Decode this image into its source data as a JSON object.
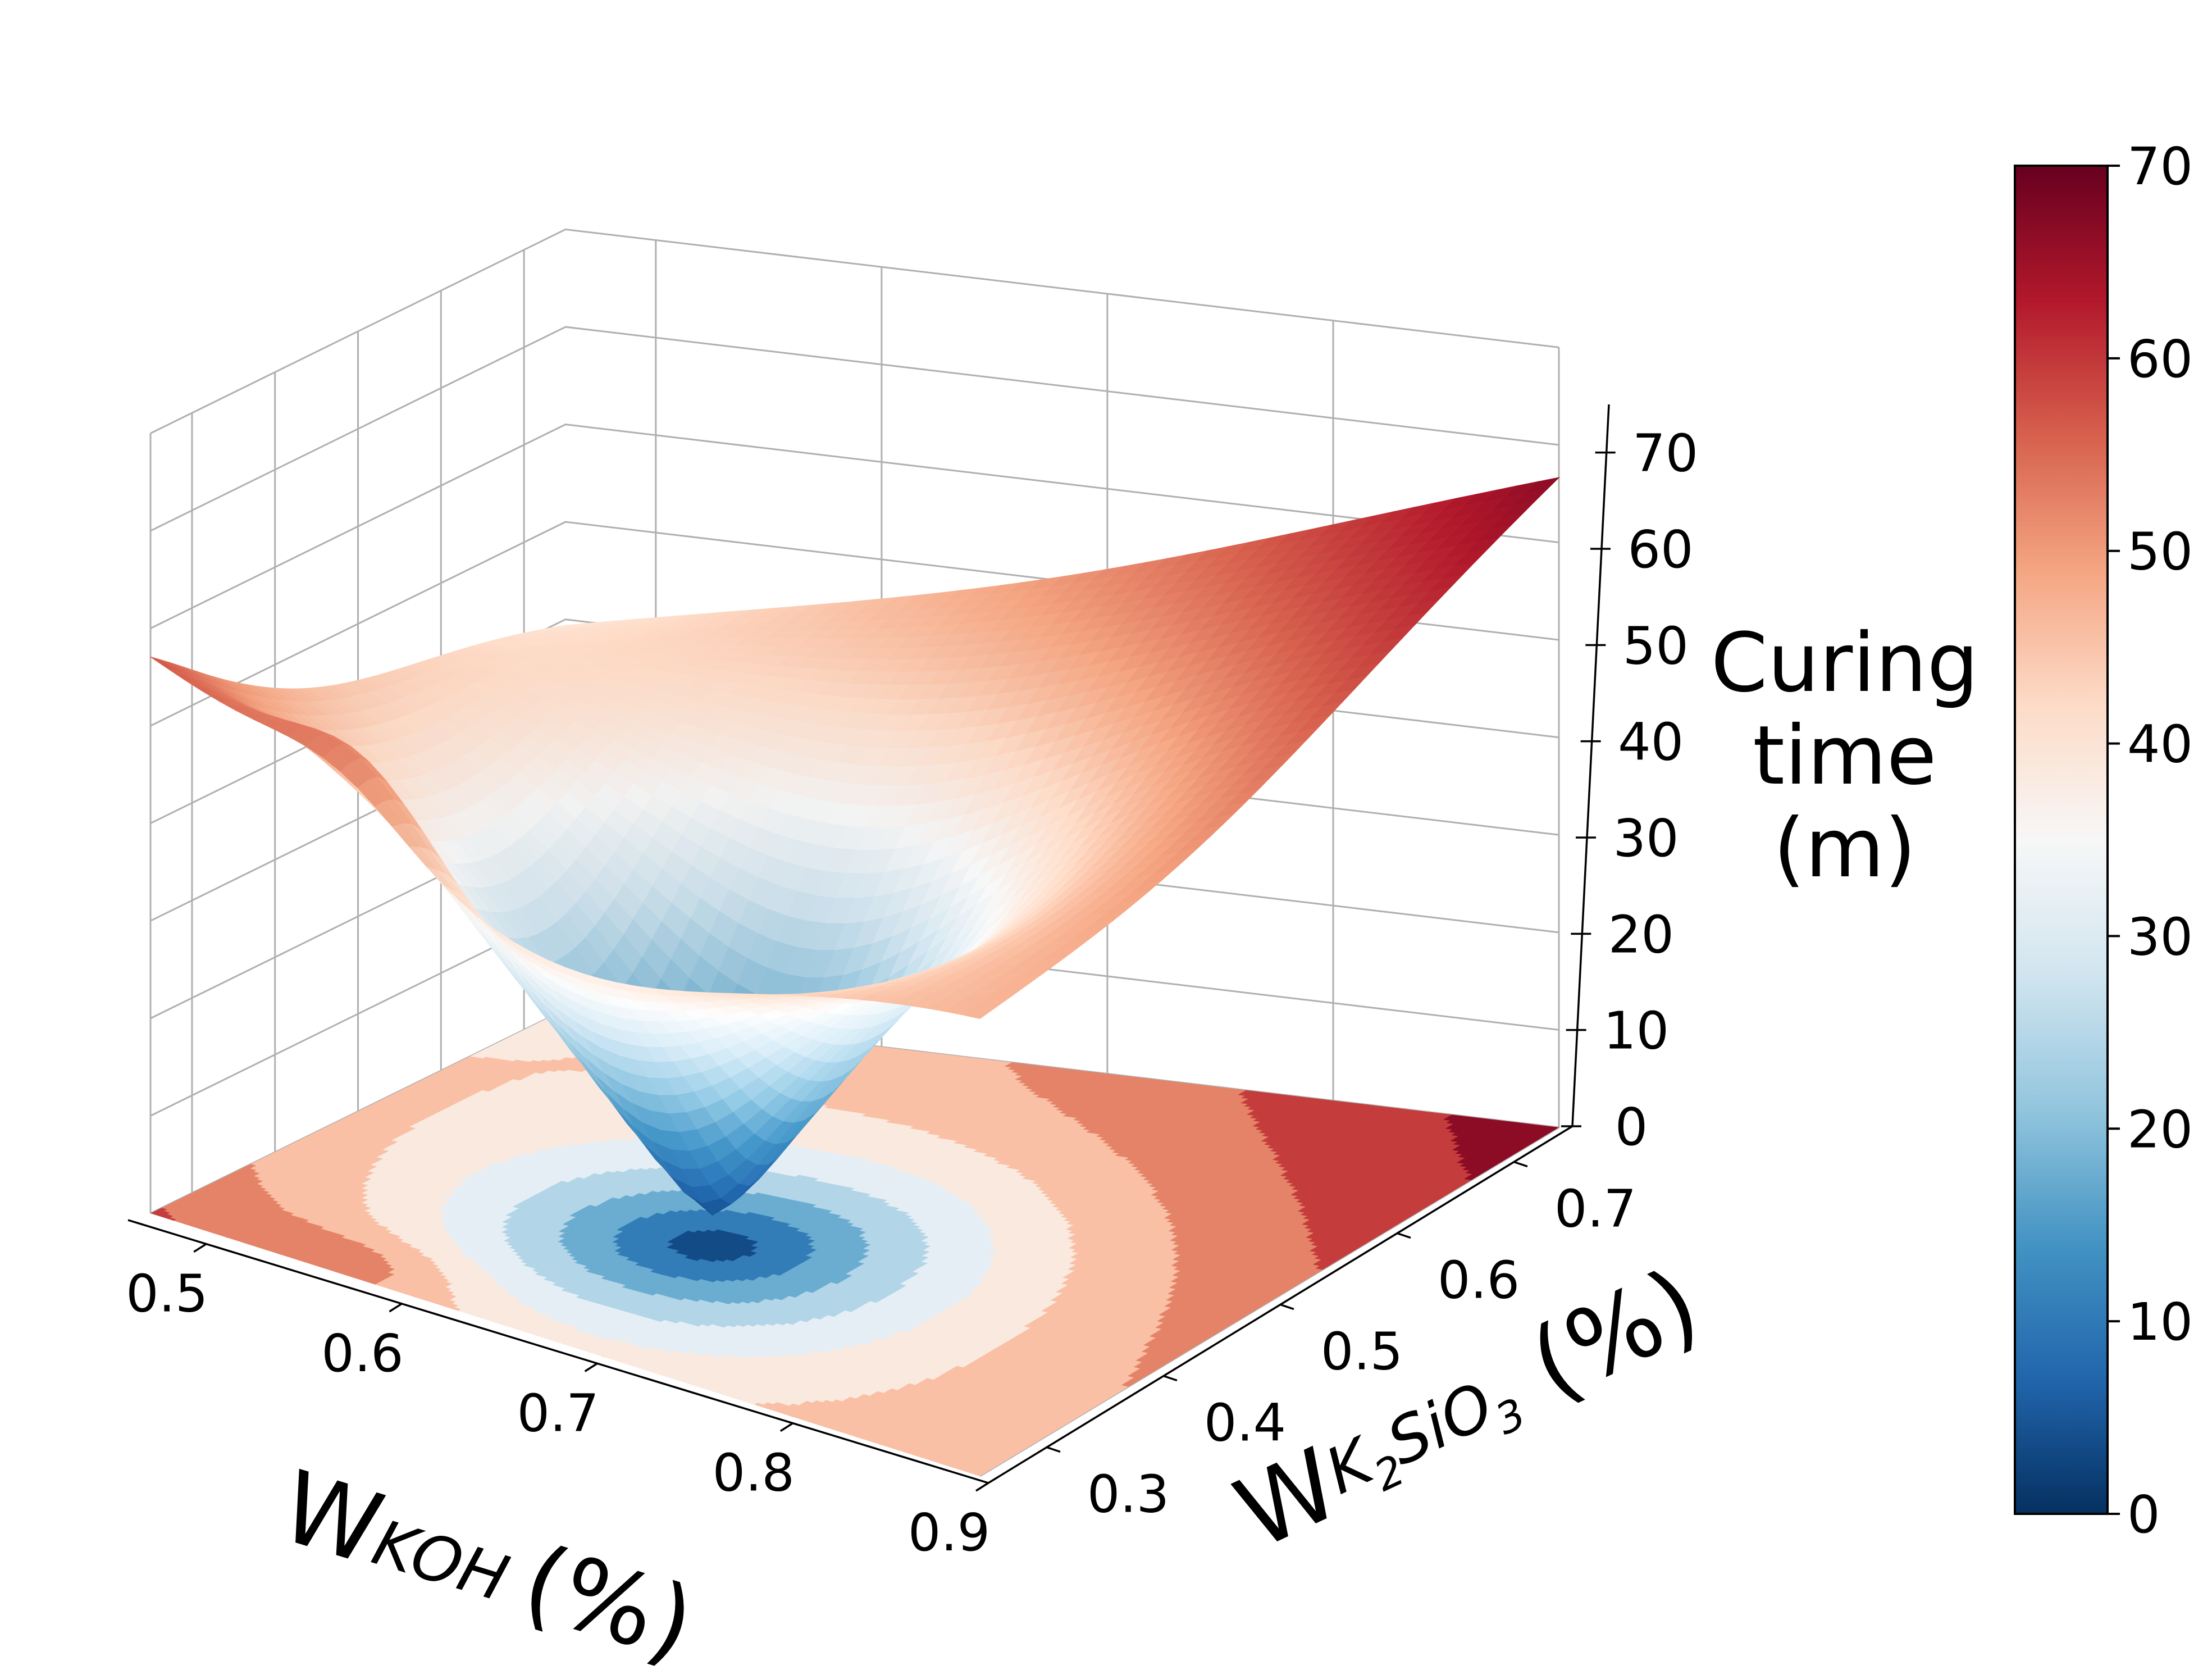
{
  "chart_data": {
    "type": "surface3d",
    "title": "",
    "xlabel": "W",
    "xlabel_sub": "KOH",
    "xlabel_unit": "(%)",
    "ylabel": "W",
    "ylabel_sub": "K",
    "ylabel_sub2": "2",
    "ylabel_sub3": "SiO",
    "ylabel_sub4": "3",
    "ylabel_unit": "(%)",
    "zlabel_lines": [
      "Curing",
      "time",
      "(m)"
    ],
    "xlim": [
      0.46,
      0.9
    ],
    "ylim": [
      0.25,
      0.75
    ],
    "zlim": [
      0,
      70
    ],
    "x_ticks": [
      "0.5",
      "0.6",
      "0.7",
      "0.8",
      "0.9"
    ],
    "x_tick_values": [
      0.5,
      0.6,
      0.7,
      0.8,
      0.9
    ],
    "y_ticks": [
      "0.3",
      "0.4",
      "0.5",
      "0.6",
      "0.7"
    ],
    "y_tick_values": [
      0.3,
      0.4,
      0.5,
      0.6,
      0.7
    ],
    "z_ticks": [
      "0",
      "10",
      "20",
      "30",
      "40",
      "50",
      "60",
      "70"
    ],
    "z_tick_values": [
      0,
      10,
      20,
      30,
      40,
      50,
      60,
      70
    ],
    "colormap": "RdBu_r",
    "colormap_stops": [
      "#053061",
      "#2166ac",
      "#4393c3",
      "#92c5de",
      "#d1e5f0",
      "#f7f7f7",
      "#fddbc7",
      "#f4a582",
      "#d6604d",
      "#b2182b",
      "#67001f"
    ],
    "colorbar": {
      "range": [
        0,
        70
      ],
      "ticks": [
        "0",
        "10",
        "20",
        "30",
        "40",
        "50",
        "60",
        "70"
      ],
      "tick_values": [
        0,
        10,
        20,
        30,
        40,
        50,
        60,
        70
      ]
    },
    "surface_corners": [
      {
        "x": 0.46,
        "y": 0.25,
        "z": 62
      },
      {
        "x": 0.9,
        "y": 0.25,
        "z": 51
      },
      {
        "x": 0.46,
        "y": 0.75,
        "z": 41
      },
      {
        "x": 0.9,
        "y": 0.75,
        "z": 68
      }
    ],
    "surface_minimum": {
      "x": 0.67,
      "y": 0.42,
      "z": 3
    },
    "contour_levels": [
      0,
      7,
      14,
      21,
      28,
      35,
      42,
      49,
      56,
      63,
      70
    ],
    "grid": true
  }
}
